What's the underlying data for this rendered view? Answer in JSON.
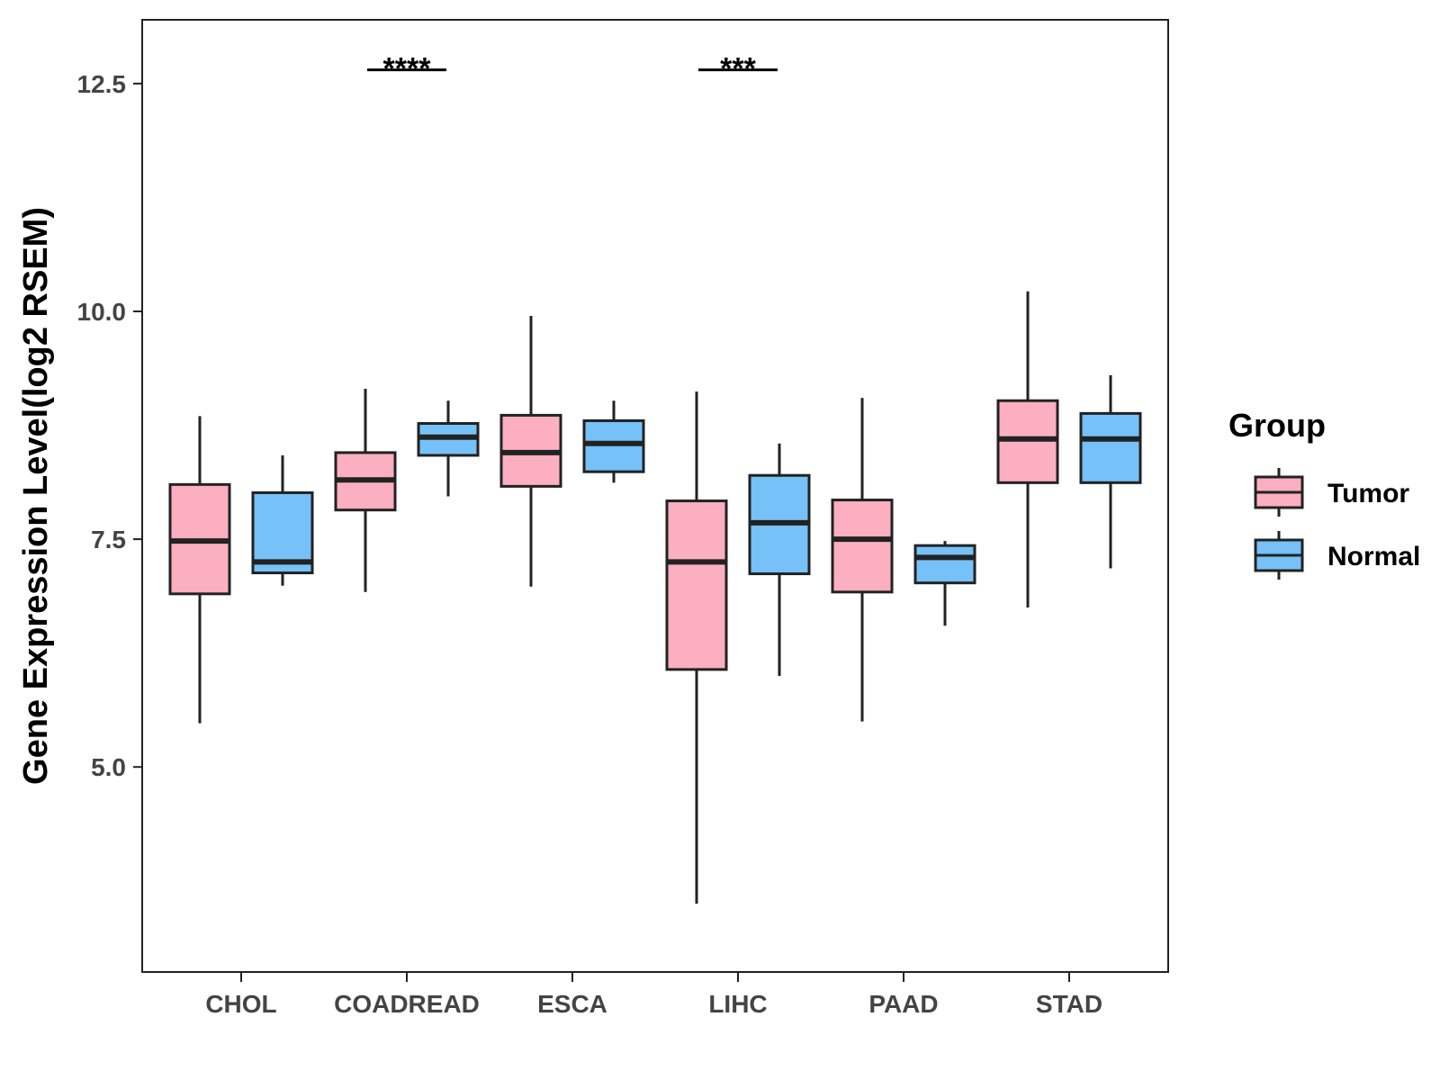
{
  "chart_data": {
    "type": "boxplot",
    "title": "",
    "xlabel": "",
    "ylabel": "Gene Expression Level(log2 RSEM)",
    "ylim": [
      2.75,
      13.2
    ],
    "yticks": [
      5.0,
      7.5,
      10.0,
      12.5
    ],
    "ytick_labels": [
      "5.0",
      "7.5",
      "10.0",
      "12.5"
    ],
    "categories": [
      "CHOL",
      "COADREAD",
      "ESCA",
      "LIHC",
      "PAAD",
      "STAD"
    ],
    "legend": {
      "title": "Group",
      "position": "right",
      "entries": [
        "Tumor",
        "Normal"
      ]
    },
    "colors": {
      "Tumor": "#FBAFC0",
      "Normal": "#76C1F8",
      "outline": "#222222"
    },
    "series": [
      {
        "name": "Tumor",
        "boxes": [
          {
            "category": "CHOL",
            "whisker_low": 5.48,
            "q1": 6.9,
            "median": 7.48,
            "q3": 8.1,
            "whisker_high": 8.85
          },
          {
            "category": "COADREAD",
            "whisker_low": 6.92,
            "q1": 7.82,
            "median": 8.15,
            "q3": 8.45,
            "whisker_high": 9.15
          },
          {
            "category": "ESCA",
            "whisker_low": 6.98,
            "q1": 8.08,
            "median": 8.45,
            "q3": 8.86,
            "whisker_high": 9.95
          },
          {
            "category": "LIHC",
            "whisker_low": 3.5,
            "q1": 6.07,
            "median": 7.25,
            "q3": 7.92,
            "whisker_high": 9.12
          },
          {
            "category": "PAAD",
            "whisker_low": 5.5,
            "q1": 6.92,
            "median": 7.5,
            "q3": 7.93,
            "whisker_high": 9.05
          },
          {
            "category": "STAD",
            "whisker_low": 6.75,
            "q1": 8.12,
            "median": 8.6,
            "q3": 9.02,
            "whisker_high": 10.22
          }
        ]
      },
      {
        "name": "Normal",
        "boxes": [
          {
            "category": "CHOL",
            "whisker_low": 6.99,
            "q1": 7.13,
            "median": 7.25,
            "q3": 8.01,
            "whisker_high": 8.42
          },
          {
            "category": "COADREAD",
            "whisker_low": 7.97,
            "q1": 8.42,
            "median": 8.62,
            "q3": 8.77,
            "whisker_high": 9.02
          },
          {
            "category": "ESCA",
            "whisker_low": 8.12,
            "q1": 8.24,
            "median": 8.55,
            "q3": 8.8,
            "whisker_high": 9.02
          },
          {
            "category": "LIHC",
            "whisker_low": 6.0,
            "q1": 7.12,
            "median": 7.68,
            "q3": 8.2,
            "whisker_high": 8.55
          },
          {
            "category": "PAAD",
            "whisker_low": 6.55,
            "q1": 7.02,
            "median": 7.3,
            "q3": 7.43,
            "whisker_high": 7.48
          },
          {
            "category": "STAD",
            "whisker_low": 7.18,
            "q1": 8.12,
            "median": 8.6,
            "q3": 8.88,
            "whisker_high": 9.3
          }
        ]
      }
    ],
    "annotations": [
      {
        "category": "COADREAD",
        "label": "****",
        "y": 12.65
      },
      {
        "category": "LIHC",
        "label": "***",
        "y": 12.65
      }
    ]
  }
}
